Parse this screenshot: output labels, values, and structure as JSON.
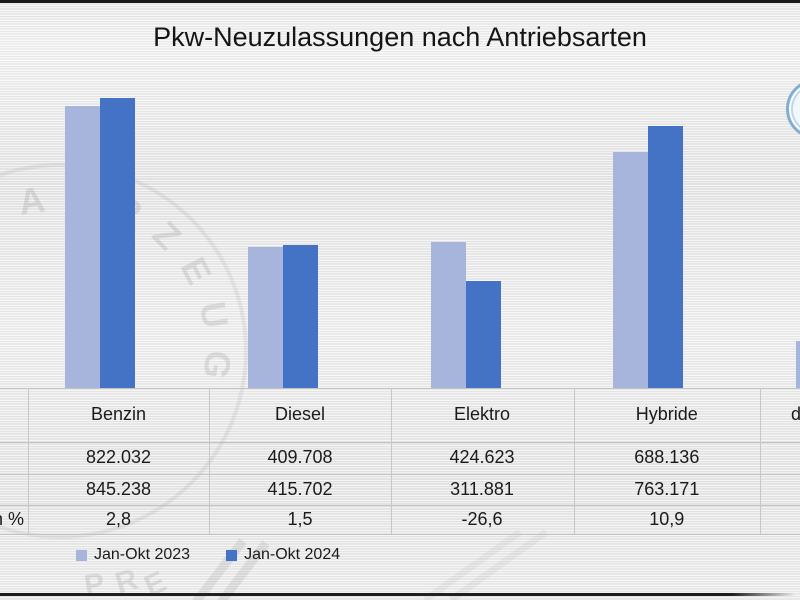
{
  "title": {
    "text": "Pkw-Neuzulassungen nach Antriebsarten"
  },
  "chart_data": {
    "type": "bar",
    "title": "Pkw-Neuzulassungen nach Antriebsarten",
    "categories": [
      "Benzin",
      "Diesel",
      "Elektro",
      "Hybride",
      "d"
    ],
    "series": [
      {
        "name": "Jan-Okt 2023",
        "color": "#a7b5dc",
        "values": [
          822032,
          409708,
          424623,
          688136,
          137000
        ]
      },
      {
        "name": "Jan-Okt 2024",
        "color": "#4472c4",
        "values": [
          845238,
          415702,
          311881,
          763171,
          null
        ]
      }
    ],
    "value_format": "dot thousands separator, comma decimals",
    "ylim": [
      0,
      1130000
    ],
    "gridlines": false,
    "axes_visible": false,
    "legend_position": "bottom"
  },
  "table": {
    "columns": [
      "Benzin",
      "Diesel",
      "Elektro",
      "Hybride",
      "d"
    ],
    "row_labels": [
      "",
      "",
      "n %"
    ],
    "rows": [
      [
        "822.032",
        "409.708",
        "424.623",
        "688.136",
        ""
      ],
      [
        "845.238",
        "415.702",
        "311.881",
        "763.171",
        ""
      ],
      [
        "2,8",
        "1,5",
        "-26,6",
        "10,9",
        ""
      ]
    ]
  },
  "legend": {
    "items": [
      {
        "label": "Jan-Okt 2023",
        "color": "#a7b5dc"
      },
      {
        "label": "Jan-Okt 2024",
        "color": "#4472c4"
      }
    ]
  },
  "watermark": {
    "ring_text": "AHRZEUG",
    "bottom_letters": [
      "P",
      "R",
      "E"
    ]
  },
  "colors": {
    "series_2023": "#a7b5dc",
    "series_2024": "#4472c4",
    "background": "#ebebeb",
    "text": "#1b1b1b",
    "table_border": "#c7c7c7",
    "edge_bar": "#1a1a1a"
  }
}
